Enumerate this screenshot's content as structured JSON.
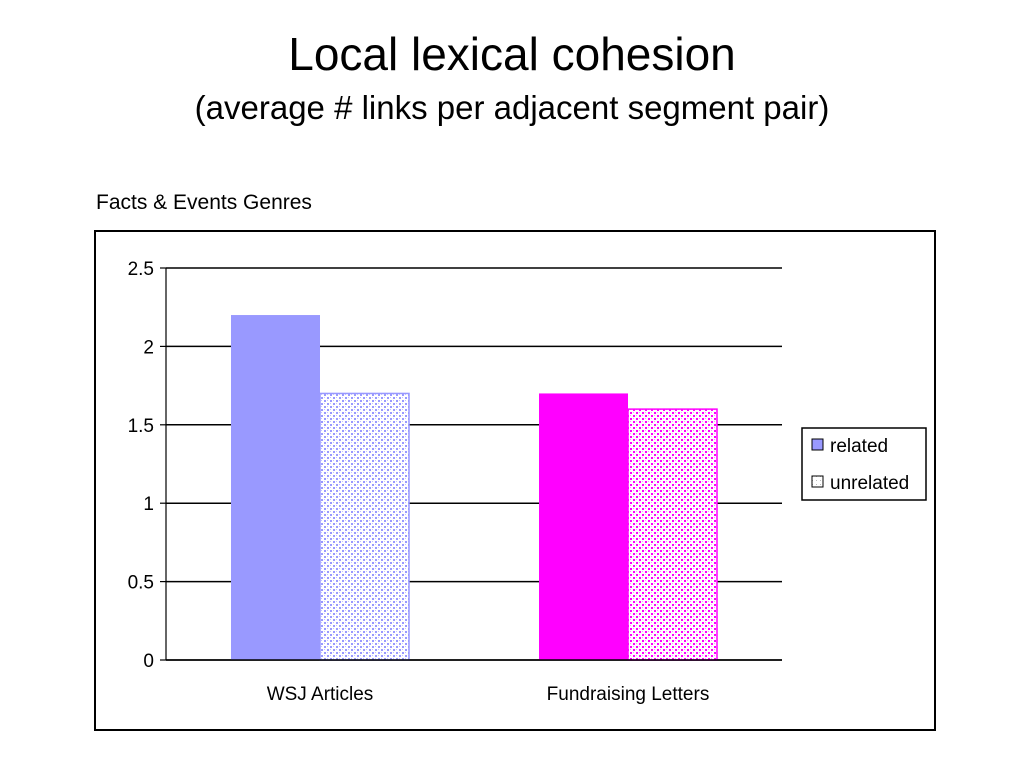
{
  "slide": {
    "title": "Local lexical cohesion",
    "subtitle": "(average # links per adjacent segment pair)"
  },
  "chart_data": {
    "type": "bar",
    "title": "Facts & Events Genres",
    "xlabel": "",
    "ylabel": "",
    "categories": [
      "WSJ Articles",
      "Fundraising Letters"
    ],
    "series": [
      {
        "name": "related",
        "values": [
          2.2,
          1.7
        ]
      },
      {
        "name": "unrelated",
        "values": [
          1.7,
          1.6
        ]
      }
    ],
    "bar_colors": [
      {
        "related": "#9999ff",
        "unrelated": "#9999ff"
      },
      {
        "related": "#ff00ff",
        "unrelated": "#ff00ff"
      }
    ],
    "unrelated_fill": "dotted-pattern",
    "ylim": [
      0,
      2.5
    ],
    "yticks": [
      0,
      0.5,
      1,
      1.5,
      2,
      2.5
    ],
    "ytick_labels": [
      "0",
      "0.5",
      "1",
      "1.5",
      "2",
      "2.5"
    ],
    "grid": true,
    "legend_position": "right",
    "legend_colors": {
      "related": "#9999ff",
      "unrelated": "#ffffff"
    }
  }
}
